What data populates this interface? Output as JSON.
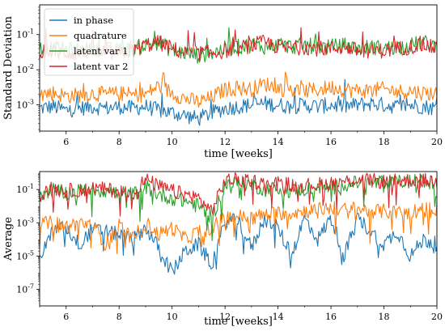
{
  "chart_data": [
    {
      "type": "line",
      "xlabel": "time [weeks]",
      "ylabel": "Standard Deviation",
      "yscale": "log",
      "xlim": [
        5,
        20
      ],
      "ylim": [
        0.00018,
        0.7
      ],
      "x_ticks": [
        6,
        8,
        10,
        12,
        14,
        16,
        18,
        20
      ],
      "y_ticks": [
        0.001,
        0.01,
        0.1
      ],
      "y_tick_labels": [
        "10^{-3}",
        "10^{-2}",
        "10^{-1}"
      ],
      "legend": "top-left",
      "grid": false,
      "x": [
        5,
        5.5,
        6,
        6.5,
        7,
        7.5,
        8,
        8.5,
        9,
        9.5,
        10,
        10.5,
        11,
        11.5,
        12,
        12.5,
        13,
        13.5,
        14,
        14.5,
        15,
        15.5,
        16,
        16.5,
        17,
        17.5,
        18,
        18.5,
        19,
        19.5,
        20
      ],
      "series": [
        {
          "name": "in phase",
          "color": "#1f77b4",
          "values": [
            0.0008,
            0.0009,
            0.0007,
            0.0008,
            0.0009,
            0.0008,
            0.0009,
            0.0008,
            0.0009,
            0.0007,
            0.0006,
            0.0005,
            0.0004,
            0.0006,
            0.0008,
            0.0009,
            0.001,
            0.0011,
            0.001,
            0.0009,
            0.001,
            0.0009,
            0.001,
            0.0009,
            0.001,
            0.0011,
            0.001,
            0.0009,
            0.001,
            0.0009,
            0.0008
          ]
        },
        {
          "name": "quadrature",
          "color": "#ff7f0e",
          "values": [
            0.002,
            0.0022,
            0.0018,
            0.0019,
            0.0021,
            0.002,
            0.0021,
            0.0019,
            0.002,
            0.0035,
            0.0022,
            0.0015,
            0.0012,
            0.0016,
            0.0028,
            0.003,
            0.0028,
            0.004,
            0.003,
            0.0026,
            0.0025,
            0.0027,
            0.0032,
            0.0028,
            0.0025,
            0.0026,
            0.0028,
            0.0024,
            0.0025,
            0.0022,
            0.0021
          ]
        },
        {
          "name": "latent var 1",
          "color": "#2ca02c",
          "values": [
            0.045,
            0.04,
            0.038,
            0.035,
            0.04,
            0.038,
            0.035,
            0.04,
            0.05,
            0.06,
            0.035,
            0.03,
            0.025,
            0.03,
            0.04,
            0.045,
            0.05,
            0.045,
            0.05,
            0.045,
            0.05,
            0.045,
            0.045,
            0.05,
            0.04,
            0.045,
            0.04,
            0.045,
            0.05,
            0.06,
            0.045
          ]
        },
        {
          "name": "latent var 2",
          "color": "#d62728",
          "values": [
            0.035,
            0.032,
            0.03,
            0.03,
            0.035,
            0.03,
            0.03,
            0.035,
            0.05,
            0.06,
            0.04,
            0.03,
            0.03,
            0.03,
            0.035,
            0.04,
            0.05,
            0.06,
            0.045,
            0.04,
            0.045,
            0.04,
            0.04,
            0.045,
            0.035,
            0.035,
            0.035,
            0.04,
            0.045,
            0.05,
            0.04
          ]
        }
      ]
    },
    {
      "type": "line",
      "xlabel": "time [weeks]",
      "ylabel": "Average",
      "yscale": "log",
      "xlim": [
        5,
        20
      ],
      "ylim": [
        1e-08,
        1.2
      ],
      "x_ticks": [
        6,
        8,
        10,
        12,
        14,
        16,
        18,
        20
      ],
      "y_ticks": [
        1e-07,
        1e-05,
        0.001,
        0.1
      ],
      "y_tick_labels": [
        "10^{-7}",
        "10^{-5}",
        "10^{-3}",
        "10^{-1}"
      ],
      "grid": false,
      "x": [
        5,
        5.5,
        6,
        6.5,
        7,
        7.5,
        8,
        8.5,
        9,
        9.5,
        10,
        10.5,
        11,
        11.5,
        12,
        12.5,
        13,
        13.5,
        14,
        14.5,
        15,
        15.5,
        16,
        16.5,
        17,
        17.5,
        18,
        18.5,
        19,
        19.5,
        20
      ],
      "series": [
        {
          "name": "in phase",
          "color": "#1f77b4",
          "values": [
            1e-05,
            0.0003,
            0.0005,
            5e-05,
            0.0004,
            0.0003,
            0.0002,
            0.0001,
            0.0005,
            3e-05,
            1e-06,
            2e-05,
            5e-05,
            3e-06,
            0.001,
            0.0015,
            3e-05,
            0.002,
            0.0005,
            1e-05,
            0.002,
            0.0001,
            0.002,
            1e-05,
            0.002,
            0.0003,
            5e-05,
            0.0003,
            1e-05,
            0.0001,
            5e-05
          ]
        },
        {
          "name": "quadrature",
          "color": "#ff7f0e",
          "values": [
            0.0008,
            0.001,
            0.0006,
            0.001,
            0.0008,
            5e-05,
            0.0008,
            0.0001,
            0.001,
            0.0002,
            0.0005,
            0.0001,
            0.0003,
            0.0005,
            0.002,
            0.0025,
            0.002,
            0.003,
            0.004,
            0.004,
            0.005,
            0.006,
            0.008,
            0.006,
            0.007,
            0.005,
            0.005,
            0.004,
            0.005,
            0.006,
            0.007
          ]
        },
        {
          "name": "latent var 1",
          "color": "#2ca02c",
          "values": [
            0.05,
            0.1,
            0.06,
            0.08,
            0.1,
            0.08,
            0.06,
            0.05,
            0.15,
            0.05,
            0.03,
            0.02,
            0.01,
            0.002,
            0.2,
            0.25,
            0.2,
            0.1,
            0.12,
            0.08,
            0.1,
            0.15,
            0.12,
            0.2,
            0.25,
            0.25,
            0.28,
            0.28,
            0.3,
            0.3,
            0.25
          ]
        },
        {
          "name": "latent var 2",
          "color": "#d62728",
          "values": [
            0.05,
            0.12,
            0.08,
            0.1,
            0.12,
            0.1,
            0.08,
            0.06,
            0.4,
            0.15,
            0.08,
            0.05,
            0.03,
            0.005,
            0.35,
            0.38,
            0.35,
            0.2,
            0.25,
            0.2,
            0.18,
            0.2,
            0.25,
            0.3,
            0.4,
            0.35,
            0.3,
            0.32,
            0.35,
            0.35,
            0.3
          ]
        }
      ]
    }
  ]
}
